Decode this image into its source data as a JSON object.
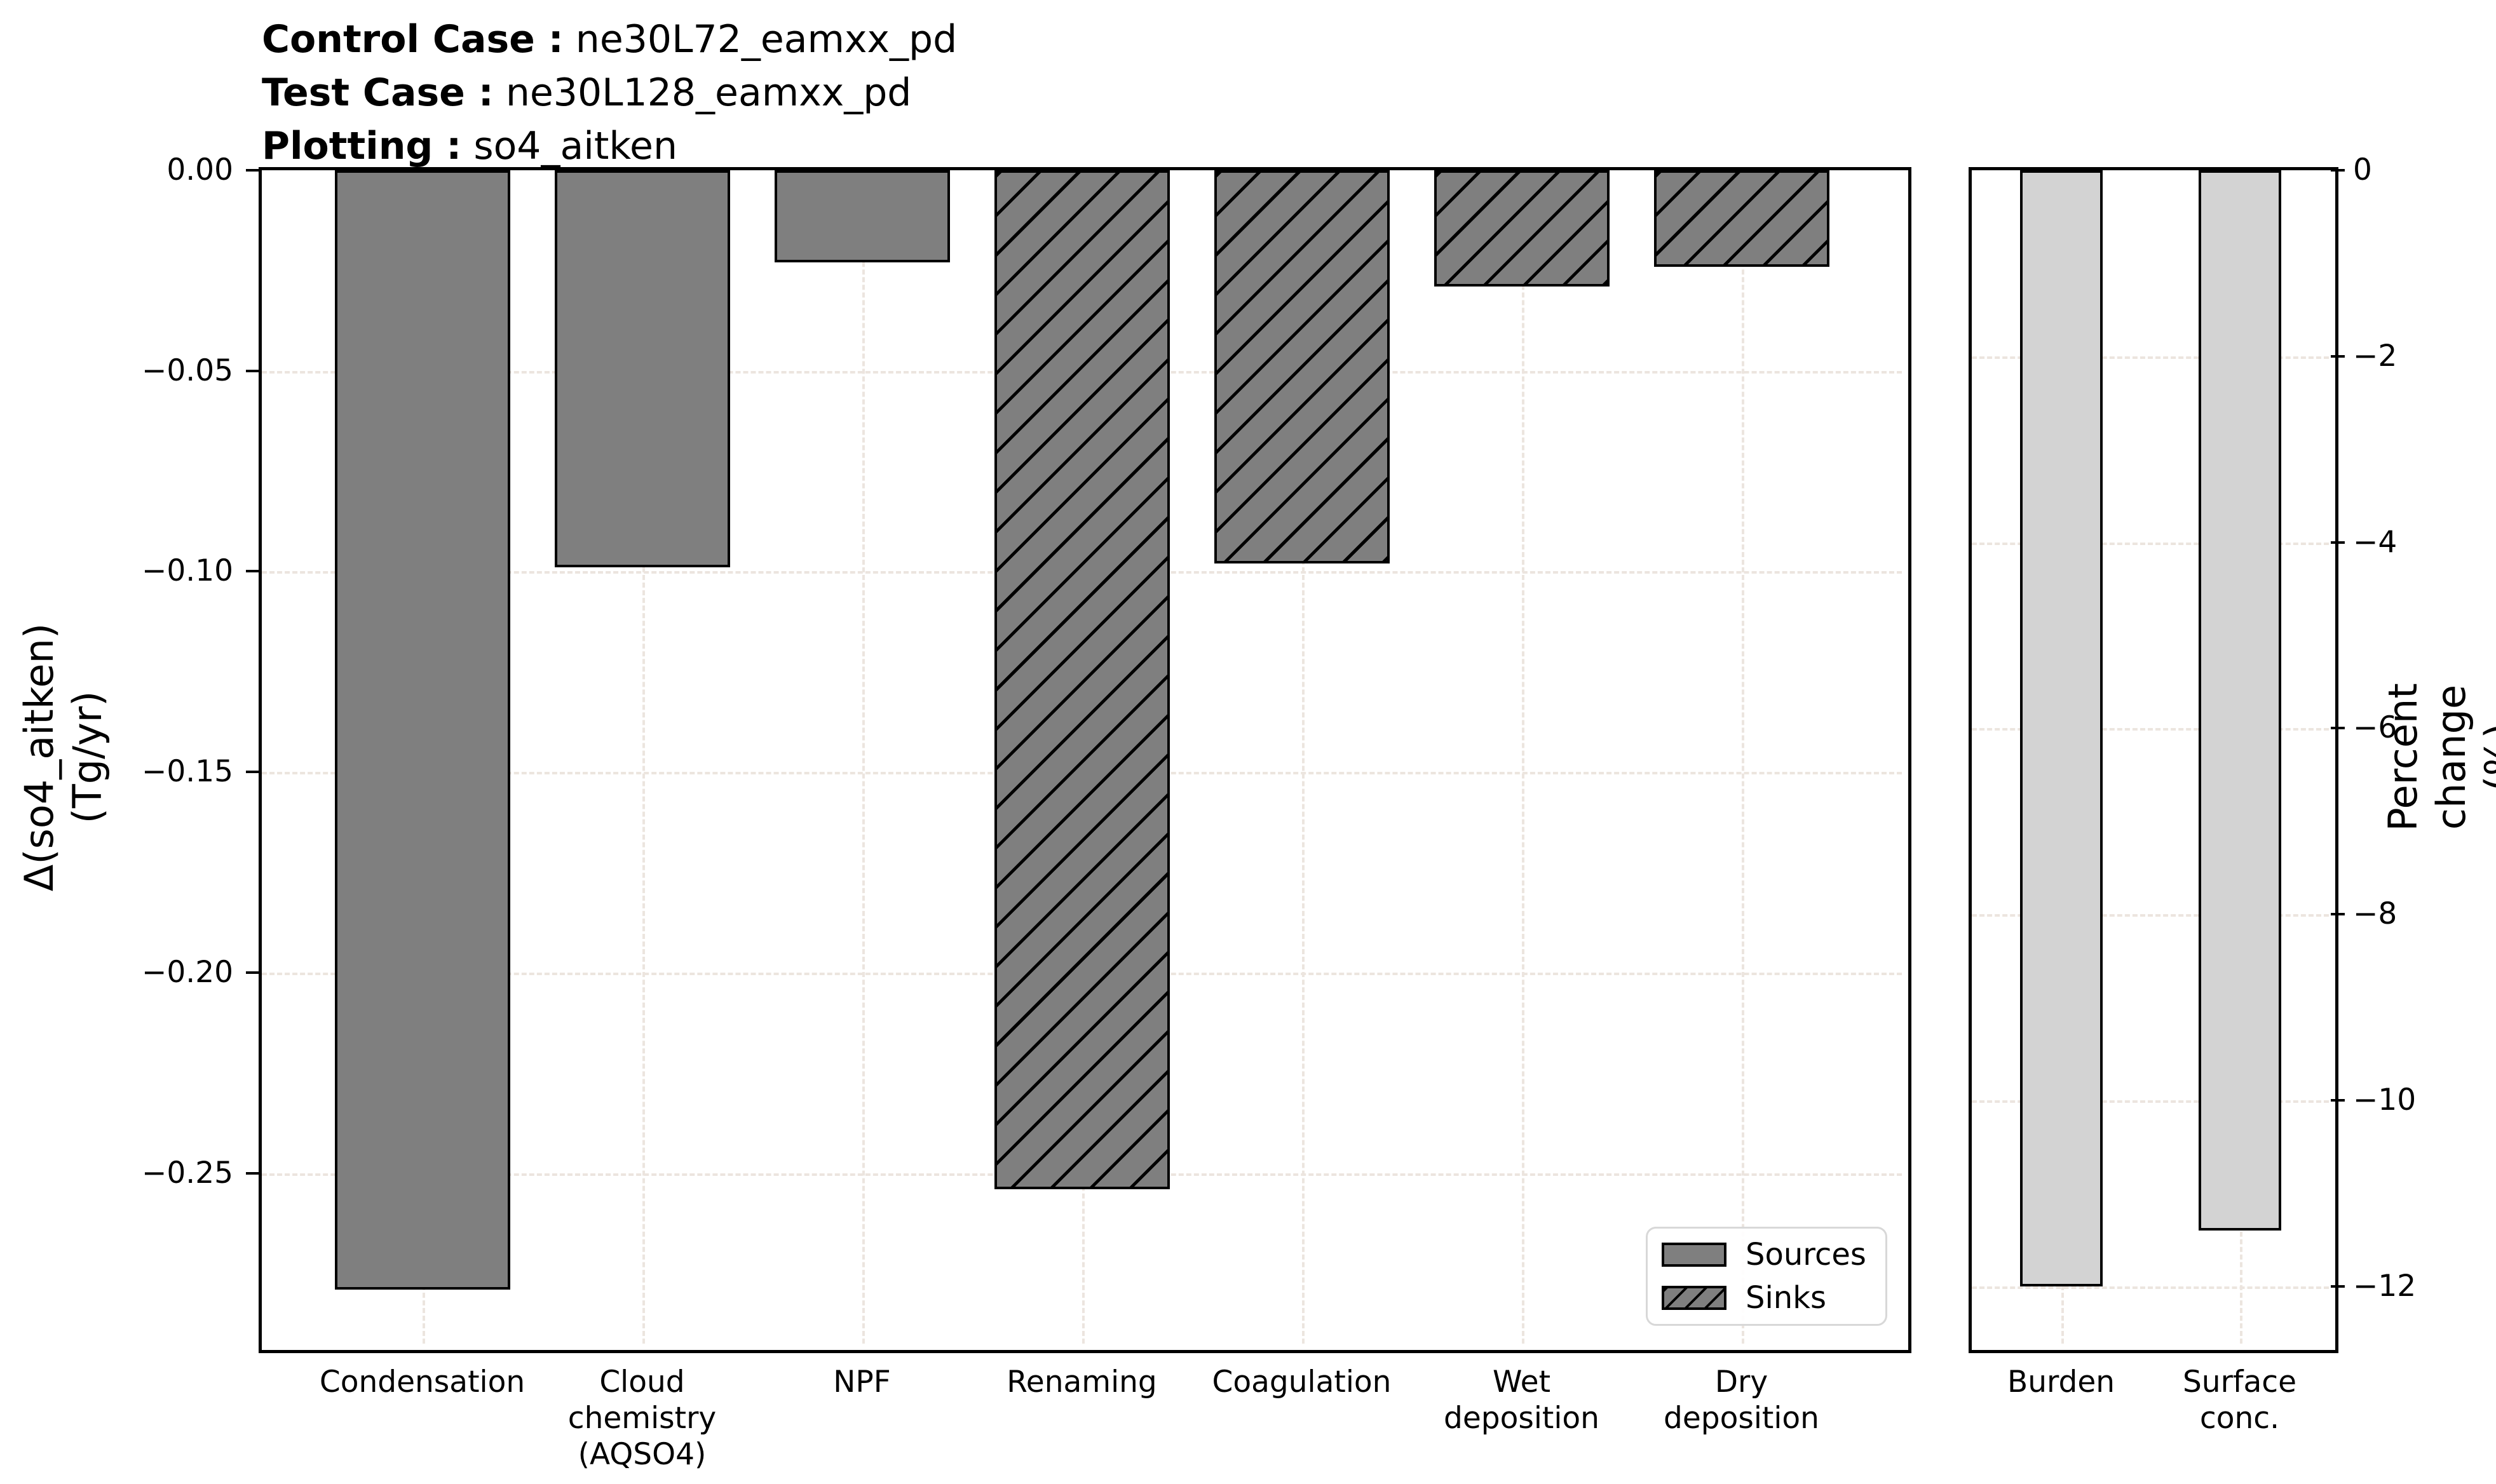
{
  "header": {
    "lines": [
      {
        "label": "Control Case :",
        "value": " ne30L72_eamxx_pd"
      },
      {
        "label": "Test Case :",
        "value": " ne30L128_eamxx_pd"
      },
      {
        "label": "Plotting :",
        "value": " so4_aitken"
      }
    ]
  },
  "colors": {
    "source_sink_bar": "#7f7f7f",
    "percent_bar": "#d3d3d3",
    "bar_edge": "#000000",
    "grid": "#ece5df",
    "legend_border": "#d8d8d8"
  },
  "chart_data": [
    {
      "type": "bar",
      "panel": "left",
      "ylabel": "Δ(so4_aitken)\n(Tg/yr)",
      "categories": [
        "Condensation",
        "Cloud\nchemistry\n(AQSO4)",
        "NPF",
        "Renaming",
        "Coagulation",
        "Wet\ndeposition",
        "Dry\ndeposition"
      ],
      "values": [
        -0.279,
        -0.099,
        -0.023,
        -0.254,
        -0.098,
        -0.029,
        -0.024
      ],
      "bar_styles": [
        "solid",
        "solid",
        "solid",
        "hatched",
        "hatched",
        "hatched",
        "hatched"
      ],
      "bar_roles": [
        "source",
        "source",
        "source",
        "sink",
        "sink",
        "sink",
        "sink"
      ],
      "bar_color": "#7f7f7f",
      "ylim": [
        -0.2925,
        0
      ],
      "grid": true,
      "yticks": [
        {
          "v": 0,
          "label": "0.00"
        },
        {
          "v": -0.05,
          "label": "−0.05"
        },
        {
          "v": -0.1,
          "label": "−0.10"
        },
        {
          "v": -0.15,
          "label": "−0.15"
        },
        {
          "v": -0.2,
          "label": "−0.20"
        },
        {
          "v": -0.25,
          "label": "−0.25"
        }
      ],
      "legend": {
        "position": "lower right",
        "items": [
          {
            "label": "Sources",
            "style": "solid"
          },
          {
            "label": "Sinks",
            "style": "hatched"
          }
        ]
      }
    },
    {
      "type": "bar",
      "panel": "right",
      "ylabel": "Percent change (%)",
      "categories": [
        "Burden",
        "Surface\nconc."
      ],
      "values": [
        -12.0,
        -11.4
      ],
      "bar_styles": [
        "solid",
        "solid"
      ],
      "bar_color": "#d3d3d3",
      "ylim": [
        -12.615,
        0
      ],
      "grid": true,
      "yticks": [
        {
          "v": 0,
          "label": "0"
        },
        {
          "v": -2,
          "label": "−2"
        },
        {
          "v": -4,
          "label": "−4"
        },
        {
          "v": -6,
          "label": "−6"
        },
        {
          "v": -8,
          "label": "−8"
        },
        {
          "v": -10,
          "label": "−10"
        },
        {
          "v": -12,
          "label": "−12"
        }
      ]
    }
  ]
}
